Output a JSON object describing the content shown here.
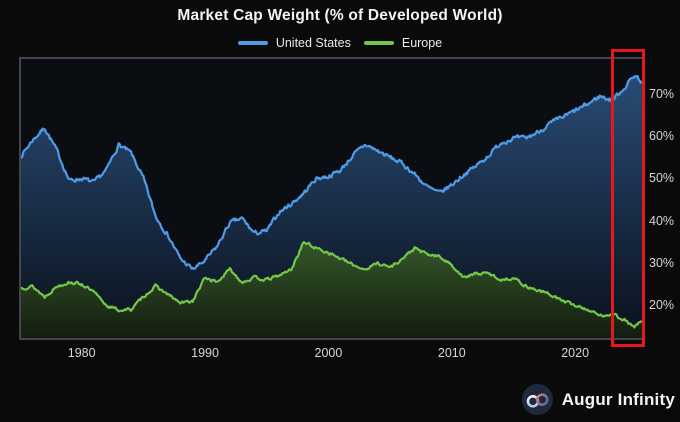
{
  "title": "Market Cap Weight (% of Developed World)",
  "legend": {
    "items": [
      {
        "label": "United States",
        "color": "#4e9ce8"
      },
      {
        "label": "Europe",
        "color": "#74c549"
      }
    ]
  },
  "footer": {
    "brand": "Augur Infinity"
  },
  "colors": {
    "page_bg": "#0a0a0b",
    "plot_bg": "#0a0e13",
    "plot_border": "#41464c",
    "title_text": "#f3f4f6",
    "tick_text": "#d3d6d9",
    "us_line": "#4e9ce8",
    "us_fill_top": "#2b4f7a",
    "us_fill_bottom": "#0a111d",
    "eu_line": "#74c549",
    "eu_fill_top": "#34572a",
    "eu_fill_bottom": "#131c0f",
    "highlight_box": "#e5191d",
    "logo_circle": "#1e2940"
  },
  "annotation": {
    "highlight_x_range": [
      2023,
      2025.5
    ],
    "note": "red box highlighting most recent period"
  },
  "chart_data": {
    "type": "area",
    "title": "Market Cap Weight (% of Developed World)",
    "xlabel": "",
    "ylabel": "",
    "grid": false,
    "legend_position": "top",
    "xlim": [
      1975,
      2025.5
    ],
    "ylim": [
      12,
      78.5
    ],
    "x_ticks": [
      {
        "value": 1980,
        "label": "1980"
      },
      {
        "value": 1990,
        "label": "1990"
      },
      {
        "value": 2000,
        "label": "2000"
      },
      {
        "value": 2010,
        "label": "2010"
      },
      {
        "value": 2020,
        "label": "2020"
      }
    ],
    "y_ticks": [
      {
        "value": 70,
        "label": "70%"
      },
      {
        "value": 60,
        "label": "60%"
      },
      {
        "value": 50,
        "label": "50%"
      },
      {
        "value": 40,
        "label": "40%"
      },
      {
        "value": 30,
        "label": "30%"
      },
      {
        "value": 20,
        "label": "20%"
      }
    ],
    "x": [
      1975,
      1976,
      1977,
      1978,
      1979,
      1980,
      1981,
      1982,
      1983,
      1984,
      1985,
      1986,
      1987,
      1988,
      1989,
      1990,
      1991,
      1992,
      1993,
      1994,
      1995,
      1996,
      1997,
      1998,
      1999,
      2000,
      2001,
      2002,
      2003,
      2004,
      2005,
      2006,
      2007,
      2008,
      2009,
      2010,
      2011,
      2012,
      2013,
      2014,
      2015,
      2016,
      2017,
      2018,
      2019,
      2020,
      2021,
      2022,
      2023,
      2024,
      2024.8,
      2025.4
    ],
    "series": [
      {
        "name": "United States",
        "values": [
          55,
          59,
          62,
          56.5,
          49.5,
          50,
          49,
          52,
          58,
          56,
          50,
          41,
          36.5,
          31,
          28.5,
          30.5,
          34,
          39.5,
          40.5,
          37,
          37.5,
          42,
          44,
          46.5,
          50,
          50.5,
          52,
          55.5,
          58,
          56.5,
          55,
          53.5,
          51,
          48,
          46.5,
          48.5,
          51,
          53,
          55.5,
          58.5,
          59.5,
          59.5,
          61,
          63,
          64.5,
          66,
          67.5,
          69.5,
          68.5,
          71.5,
          74.5,
          73
        ]
      },
      {
        "name": "Europe",
        "values": [
          24,
          24.5,
          22,
          24.5,
          25.5,
          25,
          23,
          20,
          18.8,
          19,
          22,
          24.5,
          22.5,
          20.5,
          21,
          26.5,
          25.5,
          28.5,
          25.5,
          26.5,
          26,
          27,
          28.5,
          35,
          33.5,
          32.5,
          31,
          29.5,
          28.5,
          30,
          29,
          31,
          33.5,
          32,
          31.5,
          29.5,
          26.5,
          27.5,
          27.5,
          26,
          26.5,
          24.5,
          23.5,
          22.5,
          21,
          20,
          19,
          17.5,
          18,
          16.5,
          14.8,
          16.3
        ]
      }
    ]
  }
}
